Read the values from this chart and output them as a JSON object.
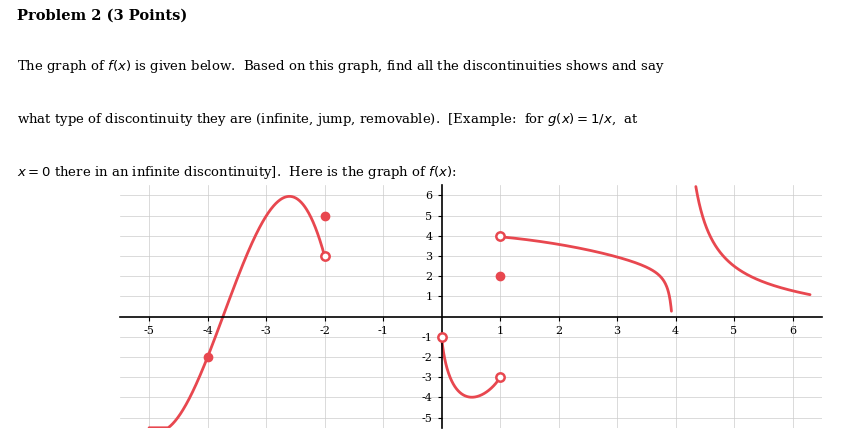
{
  "xlim": [
    -5.5,
    6.5
  ],
  "ylim": [
    -5.5,
    6.5
  ],
  "xticks": [
    -5,
    -4,
    -3,
    -2,
    -1,
    1,
    2,
    3,
    4,
    5,
    6
  ],
  "yticks": [
    -5,
    -4,
    -3,
    -2,
    -1,
    1,
    2,
    3,
    4,
    5,
    6
  ],
  "curve_color": "#e8474f",
  "line_width": 2.0,
  "dot_size": 6,
  "open_dot_size": 6,
  "title": "Problem 2 (3 Points)",
  "line1": "The graph of $f(x)$ is given below.  Based on this graph, find all the discontinuities shows and say",
  "line2": "what type of discontinuity they are (infinite, jump, removable).  [Example:  for $g(x) = 1/x$,  at",
  "line3": "$x = 0$ there in an infinite discontinuity].  Here is the graph of $f(x)$:"
}
